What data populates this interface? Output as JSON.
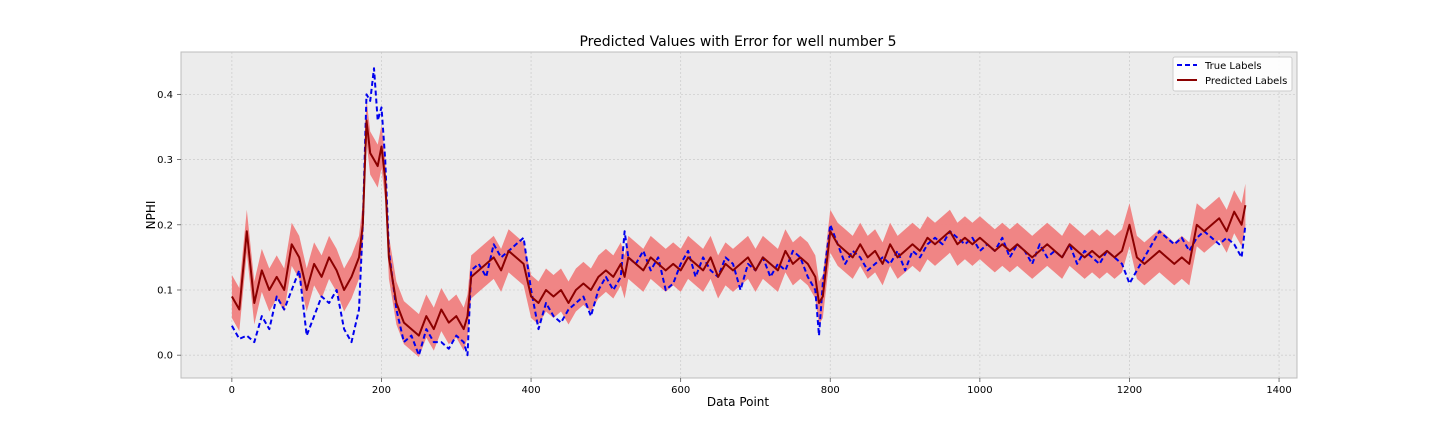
{
  "chart_data": {
    "type": "line",
    "title": "Predicted Values with Error for well number 5",
    "xlabel": "Data Point",
    "ylabel": "NPHI",
    "xlim": [
      -68,
      1424
    ],
    "ylim": [
      -0.035,
      0.465
    ],
    "x_ticks": [
      0,
      200,
      400,
      600,
      800,
      1000,
      1200,
      1400
    ],
    "y_ticks": [
      0.0,
      0.1,
      0.2,
      0.3,
      0.4
    ],
    "x_tick_labels": [
      "0",
      "200",
      "400",
      "600",
      "800",
      "1000",
      "1200",
      "1400"
    ],
    "y_tick_labels": [
      "0.0",
      "0.1",
      "0.2",
      "0.3",
      "0.4"
    ],
    "grid": true,
    "legend_position": "top-right",
    "error_band": {
      "color": "#f08080",
      "half_width": 0.033
    },
    "series": [
      {
        "name": "True Labels",
        "style": "dashed",
        "color": "#0000ee",
        "x": [
          0,
          10,
          20,
          30,
          40,
          50,
          60,
          70,
          80,
          90,
          100,
          110,
          120,
          130,
          140,
          150,
          160,
          170,
          175,
          180,
          185,
          190,
          195,
          200,
          205,
          210,
          220,
          230,
          240,
          250,
          260,
          270,
          280,
          290,
          300,
          310,
          315,
          320,
          330,
          340,
          350,
          360,
          370,
          380,
          390,
          400,
          410,
          420,
          430,
          440,
          450,
          460,
          470,
          480,
          490,
          500,
          510,
          520,
          525,
          530,
          540,
          550,
          560,
          570,
          580,
          590,
          600,
          610,
          620,
          630,
          640,
          650,
          660,
          670,
          680,
          690,
          700,
          710,
          720,
          730,
          740,
          750,
          760,
          770,
          780,
          785,
          790,
          800,
          810,
          820,
          830,
          840,
          850,
          860,
          870,
          880,
          890,
          900,
          910,
          920,
          930,
          940,
          950,
          960,
          970,
          980,
          990,
          1000,
          1010,
          1020,
          1030,
          1040,
          1050,
          1060,
          1070,
          1080,
          1090,
          1100,
          1110,
          1120,
          1130,
          1140,
          1150,
          1160,
          1170,
          1180,
          1190,
          1200,
          1210,
          1220,
          1230,
          1240,
          1250,
          1260,
          1270,
          1280,
          1290,
          1300,
          1310,
          1320,
          1330,
          1340,
          1350,
          1355
        ],
        "y": [
          0.045,
          0.025,
          0.03,
          0.02,
          0.06,
          0.04,
          0.09,
          0.07,
          0.1,
          0.13,
          0.03,
          0.06,
          0.09,
          0.08,
          0.1,
          0.04,
          0.02,
          0.07,
          0.2,
          0.4,
          0.39,
          0.44,
          0.36,
          0.38,
          0.3,
          0.16,
          0.07,
          0.02,
          0.03,
          0.0,
          0.04,
          0.02,
          0.02,
          0.01,
          0.03,
          0.02,
          0.0,
          0.13,
          0.14,
          0.12,
          0.17,
          0.15,
          0.16,
          0.17,
          0.18,
          0.1,
          0.04,
          0.08,
          0.06,
          0.05,
          0.07,
          0.08,
          0.09,
          0.06,
          0.1,
          0.12,
          0.1,
          0.12,
          0.19,
          0.15,
          0.14,
          0.16,
          0.13,
          0.15,
          0.1,
          0.11,
          0.14,
          0.16,
          0.12,
          0.15,
          0.13,
          0.12,
          0.15,
          0.14,
          0.1,
          0.14,
          0.13,
          0.15,
          0.12,
          0.14,
          0.13,
          0.16,
          0.15,
          0.12,
          0.1,
          0.03,
          0.11,
          0.2,
          0.17,
          0.14,
          0.16,
          0.15,
          0.13,
          0.14,
          0.15,
          0.14,
          0.16,
          0.13,
          0.16,
          0.15,
          0.17,
          0.18,
          0.17,
          0.19,
          0.18,
          0.17,
          0.18,
          0.16,
          0.17,
          0.16,
          0.18,
          0.15,
          0.17,
          0.16,
          0.14,
          0.17,
          0.15,
          0.16,
          0.15,
          0.17,
          0.14,
          0.16,
          0.15,
          0.14,
          0.16,
          0.15,
          0.14,
          0.11,
          0.13,
          0.15,
          0.17,
          0.19,
          0.18,
          0.17,
          0.18,
          0.16,
          0.18,
          0.19,
          0.18,
          0.17,
          0.18,
          0.17,
          0.15,
          0.2
        ]
      },
      {
        "name": "Predicted Labels",
        "style": "solid",
        "color": "#8b0000",
        "x": [
          0,
          10,
          20,
          30,
          40,
          50,
          60,
          70,
          80,
          90,
          100,
          110,
          120,
          130,
          140,
          150,
          160,
          170,
          175,
          180,
          185,
          190,
          195,
          200,
          205,
          210,
          220,
          230,
          240,
          250,
          260,
          270,
          280,
          290,
          300,
          310,
          315,
          320,
          330,
          340,
          350,
          360,
          370,
          380,
          390,
          400,
          410,
          420,
          430,
          440,
          450,
          460,
          470,
          480,
          490,
          500,
          510,
          520,
          525,
          530,
          540,
          550,
          560,
          570,
          580,
          590,
          600,
          610,
          620,
          630,
          640,
          650,
          660,
          670,
          680,
          690,
          700,
          710,
          720,
          730,
          740,
          750,
          760,
          770,
          780,
          785,
          790,
          800,
          810,
          820,
          830,
          840,
          850,
          860,
          870,
          880,
          890,
          900,
          910,
          920,
          930,
          940,
          950,
          960,
          970,
          980,
          990,
          1000,
          1010,
          1020,
          1030,
          1040,
          1050,
          1060,
          1070,
          1080,
          1090,
          1100,
          1110,
          1120,
          1130,
          1140,
          1150,
          1160,
          1170,
          1180,
          1190,
          1200,
          1210,
          1220,
          1230,
          1240,
          1250,
          1260,
          1270,
          1280,
          1290,
          1300,
          1310,
          1320,
          1330,
          1340,
          1350,
          1355
        ],
        "y": [
          0.09,
          0.07,
          0.19,
          0.08,
          0.13,
          0.1,
          0.12,
          0.1,
          0.17,
          0.15,
          0.1,
          0.14,
          0.12,
          0.15,
          0.13,
          0.1,
          0.12,
          0.15,
          0.2,
          0.36,
          0.31,
          0.3,
          0.29,
          0.32,
          0.27,
          0.15,
          0.08,
          0.05,
          0.04,
          0.03,
          0.06,
          0.04,
          0.07,
          0.05,
          0.06,
          0.04,
          0.06,
          0.12,
          0.13,
          0.14,
          0.15,
          0.13,
          0.16,
          0.15,
          0.14,
          0.09,
          0.08,
          0.1,
          0.09,
          0.1,
          0.08,
          0.1,
          0.11,
          0.1,
          0.12,
          0.13,
          0.12,
          0.14,
          0.12,
          0.15,
          0.14,
          0.13,
          0.15,
          0.14,
          0.13,
          0.14,
          0.13,
          0.15,
          0.14,
          0.13,
          0.15,
          0.12,
          0.14,
          0.13,
          0.14,
          0.15,
          0.13,
          0.15,
          0.14,
          0.13,
          0.16,
          0.14,
          0.15,
          0.14,
          0.12,
          0.08,
          0.09,
          0.19,
          0.17,
          0.16,
          0.15,
          0.17,
          0.15,
          0.16,
          0.14,
          0.17,
          0.15,
          0.16,
          0.17,
          0.16,
          0.18,
          0.17,
          0.18,
          0.19,
          0.17,
          0.18,
          0.17,
          0.18,
          0.17,
          0.16,
          0.17,
          0.16,
          0.17,
          0.16,
          0.15,
          0.16,
          0.17,
          0.16,
          0.15,
          0.17,
          0.16,
          0.15,
          0.16,
          0.15,
          0.16,
          0.15,
          0.16,
          0.2,
          0.15,
          0.14,
          0.15,
          0.16,
          0.15,
          0.14,
          0.15,
          0.14,
          0.2,
          0.19,
          0.2,
          0.21,
          0.19,
          0.22,
          0.2,
          0.23
        ]
      }
    ]
  }
}
